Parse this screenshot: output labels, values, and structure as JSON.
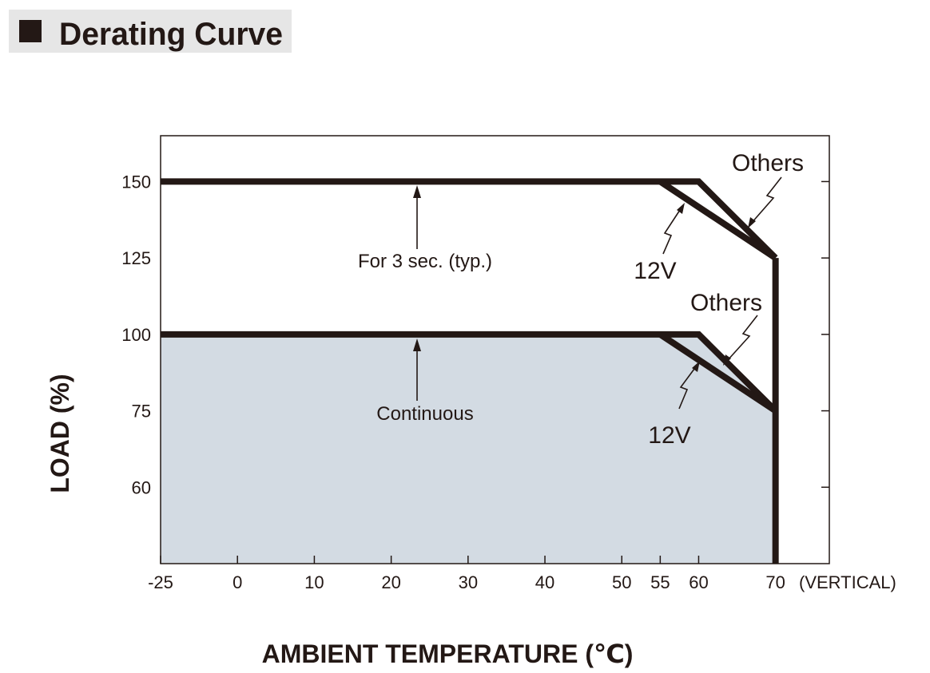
{
  "chart_data": {
    "type": "line",
    "title": "Derating Curve",
    "xlabel": "AMBIENT TEMPERATURE (℃)",
    "ylabel": "LOAD (%)",
    "xnote": "(VERTICAL)",
    "annotations": [
      "For 3 sec. (typ.)",
      "Continuous"
    ],
    "xlim": [
      -25,
      77
    ],
    "ylim": [
      45,
      165
    ],
    "xticks": [
      -25,
      0,
      10,
      20,
      30,
      40,
      50,
      55,
      60,
      70
    ],
    "yticks": [
      60,
      75,
      100,
      125,
      150
    ],
    "fill_color": "#d3dbe3",
    "series": [
      {
        "name": "Others",
        "color": "#231815",
        "x": [
          -25,
          60,
          70
        ],
        "values": [
          150,
          150,
          125
        ]
      },
      {
        "name": "12V",
        "color": "#231815",
        "x": [
          55,
          70
        ],
        "values": [
          150,
          125
        ]
      },
      {
        "name": "Others",
        "color": "#231815",
        "x": [
          -25,
          60,
          70
        ],
        "values": [
          100,
          100,
          75
        ]
      },
      {
        "name": "12V",
        "color": "#231815",
        "x": [
          55,
          70
        ],
        "values": [
          100,
          75
        ]
      },
      {
        "color": "#231815",
        "x": [
          70,
          70
        ],
        "values": [
          125,
          45
        ]
      }
    ]
  }
}
